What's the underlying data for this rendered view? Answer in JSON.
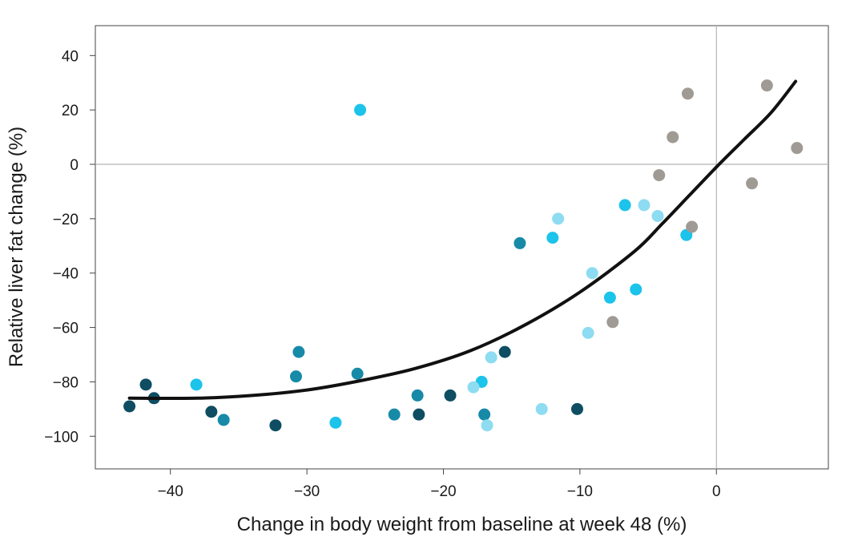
{
  "chart_data": {
    "type": "scatter",
    "title": "",
    "xlabel": "Change in body weight from baseline at week 48 (%)",
    "ylabel": "Relative liver fat change (%)",
    "xlim": [
      -45.5,
      8.2
    ],
    "ylim": [
      -112,
      51
    ],
    "xticks": [
      -40,
      -30,
      -20,
      -10,
      0
    ],
    "xtick_labels": [
      "−40",
      "−30",
      "−20",
      "−10",
      "0"
    ],
    "yticks": [
      40,
      20,
      0,
      -20,
      -40,
      -60,
      -80,
      -100
    ],
    "ytick_labels": [
      "40",
      "20",
      "0",
      "−20",
      "−40",
      "−60",
      "−80",
      "−100"
    ],
    "reference_lines": {
      "x": 0,
      "y": 0
    },
    "series": [
      {
        "name": "darkest-teal",
        "color": "#0e4d62",
        "points": [
          [
            -43.0,
            -89
          ],
          [
            -41.8,
            -81
          ],
          [
            -41.2,
            -86
          ],
          [
            -37.0,
            -91
          ],
          [
            -32.3,
            -96
          ],
          [
            -21.8,
            -92
          ],
          [
            -19.5,
            -85
          ],
          [
            -15.5,
            -69
          ],
          [
            -10.2,
            -90
          ]
        ]
      },
      {
        "name": "teal",
        "color": "#178aa8",
        "points": [
          [
            -36.1,
            -94
          ],
          [
            -30.8,
            -78
          ],
          [
            -30.6,
            -69
          ],
          [
            -26.3,
            -77
          ],
          [
            -23.6,
            -92
          ],
          [
            -21.9,
            -85
          ],
          [
            -17.0,
            -92
          ],
          [
            -14.4,
            -29
          ]
        ]
      },
      {
        "name": "bright-cyan",
        "color": "#1cc3ea",
        "points": [
          [
            -38.1,
            -81
          ],
          [
            -27.9,
            -95
          ],
          [
            -26.1,
            20
          ],
          [
            -17.2,
            -80
          ],
          [
            -12.0,
            -27
          ],
          [
            -7.8,
            -49
          ],
          [
            -6.7,
            -15
          ],
          [
            -5.9,
            -46
          ],
          [
            -2.2,
            -26
          ]
        ]
      },
      {
        "name": "light-cyan",
        "color": "#8ddcf1",
        "points": [
          [
            -17.8,
            -82
          ],
          [
            -16.8,
            -96
          ],
          [
            -16.5,
            -71
          ],
          [
            -12.8,
            -90
          ],
          [
            -11.6,
            -20
          ],
          [
            -9.4,
            -62
          ],
          [
            -9.1,
            -40
          ],
          [
            -5.3,
            -15
          ],
          [
            -4.3,
            -19
          ]
        ]
      },
      {
        "name": "gray",
        "color": "#a09a94",
        "points": [
          [
            -7.6,
            -58
          ],
          [
            -4.2,
            -4
          ],
          [
            -3.2,
            10
          ],
          [
            -2.1,
            26
          ],
          [
            -1.8,
            -23
          ],
          [
            2.6,
            -7
          ],
          [
            3.7,
            29
          ],
          [
            5.9,
            6
          ]
        ]
      }
    ],
    "fit_curve": {
      "color": "#111111",
      "points": [
        [
          -43,
          -86
        ],
        [
          -38,
          -86
        ],
        [
          -34,
          -85
        ],
        [
          -30,
          -83
        ],
        [
          -26,
          -79.5
        ],
        [
          -22,
          -75
        ],
        [
          -18,
          -68.5
        ],
        [
          -14,
          -59
        ],
        [
          -10,
          -47
        ],
        [
          -6,
          -32
        ],
        [
          -4,
          -22
        ],
        [
          -2,
          -11.5
        ],
        [
          0,
          -1
        ],
        [
          2,
          9
        ],
        [
          4,
          19
        ],
        [
          5.8,
          30.5
        ]
      ]
    }
  }
}
